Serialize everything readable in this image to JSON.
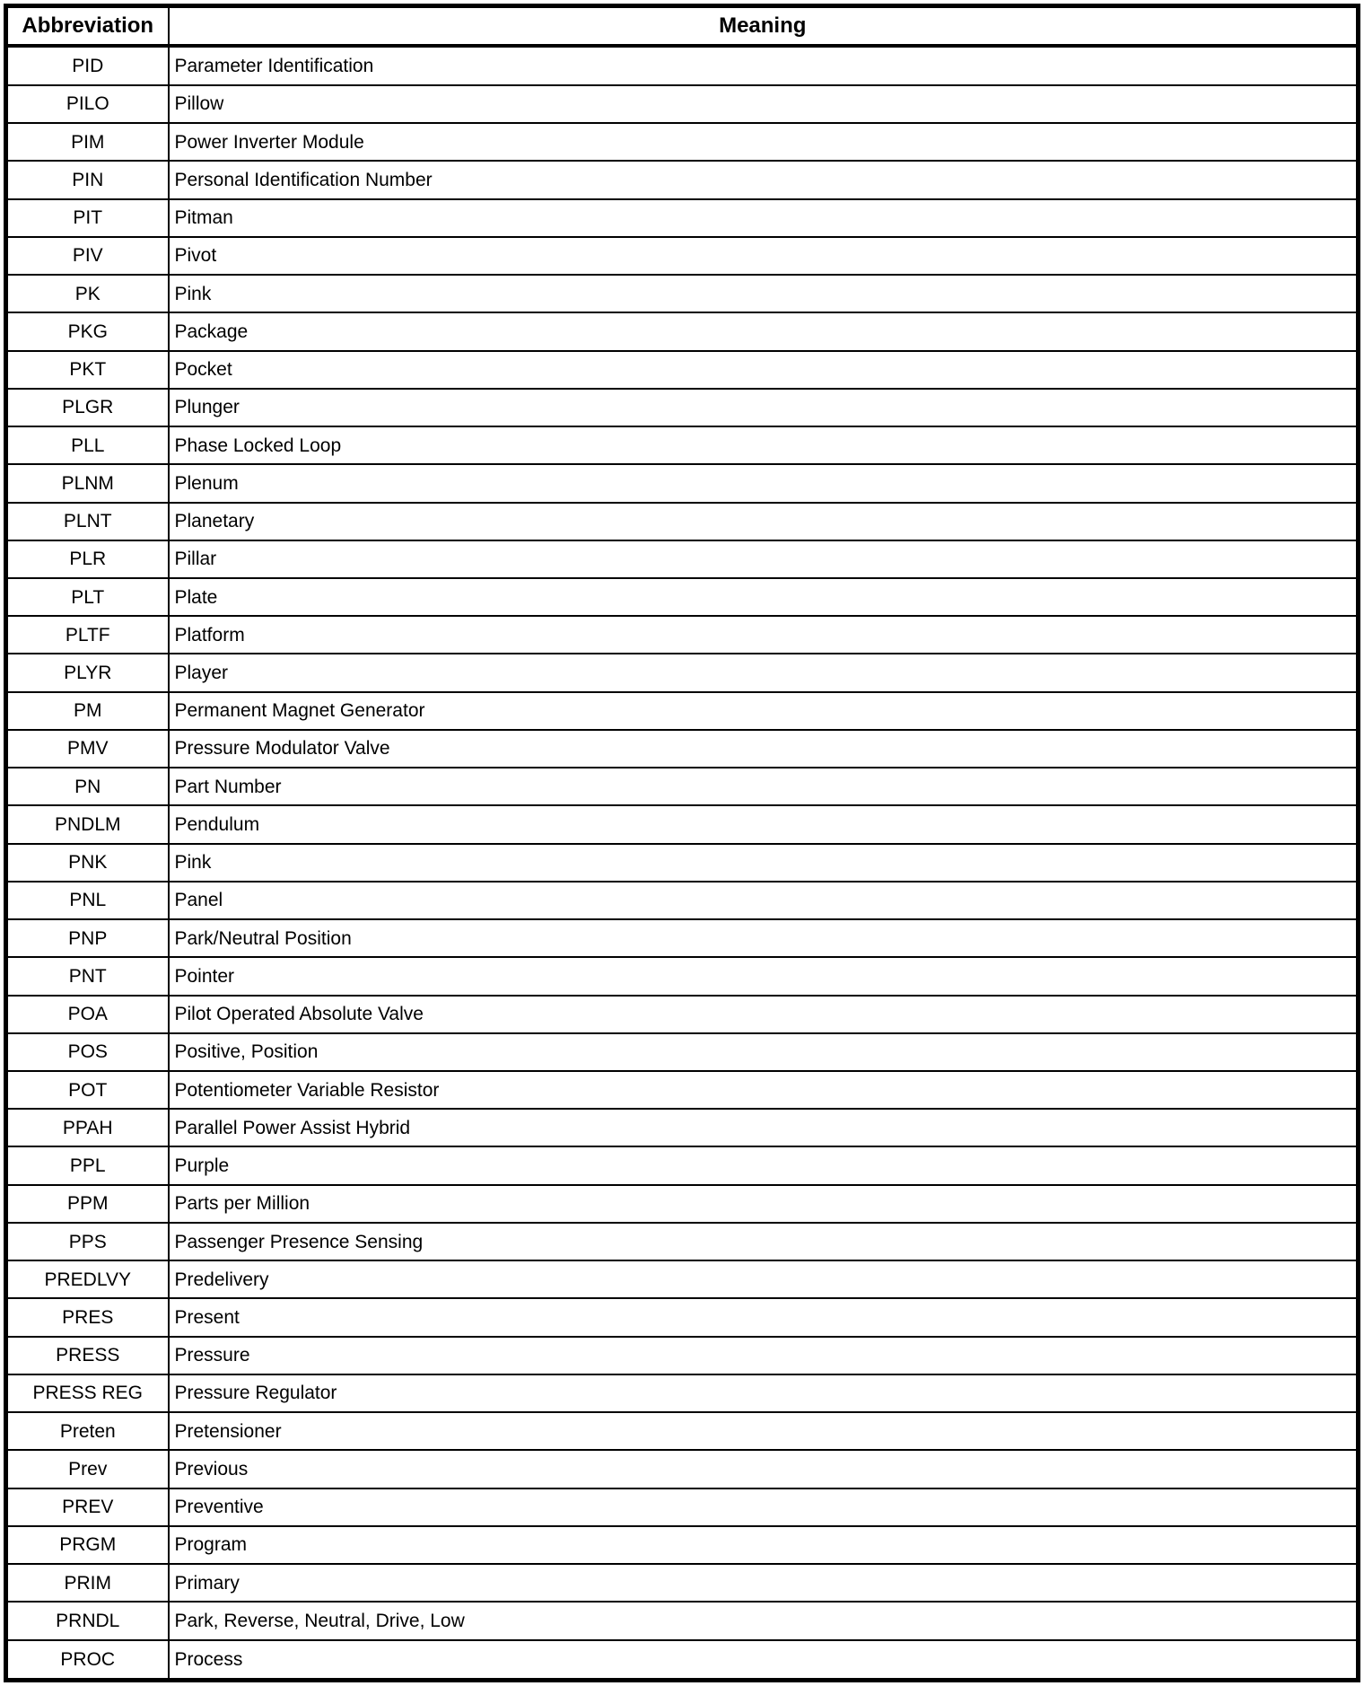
{
  "page": {
    "background_color": "#ffffff",
    "border_color": "#000000",
    "text_color": "#000000"
  },
  "table": {
    "columns": [
      {
        "label": "Abbreviation"
      },
      {
        "label": "Meaning"
      }
    ],
    "rows": [
      {
        "abbr": "PID",
        "meaning": "Parameter Identification"
      },
      {
        "abbr": "PILO",
        "meaning": "Pillow"
      },
      {
        "abbr": "PIM",
        "meaning": "Power Inverter Module"
      },
      {
        "abbr": "PIN",
        "meaning": "Personal Identification Number"
      },
      {
        "abbr": "PIT",
        "meaning": "Pitman"
      },
      {
        "abbr": "PIV",
        "meaning": "Pivot"
      },
      {
        "abbr": "PK",
        "meaning": "Pink"
      },
      {
        "abbr": "PKG",
        "meaning": "Package"
      },
      {
        "abbr": "PKT",
        "meaning": "Pocket"
      },
      {
        "abbr": "PLGR",
        "meaning": "Plunger"
      },
      {
        "abbr": "PLL",
        "meaning": "Phase Locked Loop"
      },
      {
        "abbr": "PLNM",
        "meaning": "Plenum"
      },
      {
        "abbr": "PLNT",
        "meaning": "Planetary"
      },
      {
        "abbr": "PLR",
        "meaning": "Pillar"
      },
      {
        "abbr": "PLT",
        "meaning": "Plate"
      },
      {
        "abbr": "PLTF",
        "meaning": "Platform"
      },
      {
        "abbr": "PLYR",
        "meaning": "Player"
      },
      {
        "abbr": "PM",
        "meaning": "Permanent Magnet Generator"
      },
      {
        "abbr": "PMV",
        "meaning": "Pressure Modulator Valve"
      },
      {
        "abbr": "PN",
        "meaning": "Part Number"
      },
      {
        "abbr": "PNDLM",
        "meaning": "Pendulum"
      },
      {
        "abbr": "PNK",
        "meaning": "Pink"
      },
      {
        "abbr": "PNL",
        "meaning": "Panel"
      },
      {
        "abbr": "PNP",
        "meaning": "Park/Neutral Position"
      },
      {
        "abbr": "PNT",
        "meaning": "Pointer"
      },
      {
        "abbr": "POA",
        "meaning": "Pilot Operated Absolute Valve"
      },
      {
        "abbr": "POS",
        "meaning": "Positive, Position"
      },
      {
        "abbr": "POT",
        "meaning": "Potentiometer Variable Resistor"
      },
      {
        "abbr": "PPAH",
        "meaning": "Parallel Power Assist Hybrid"
      },
      {
        "abbr": "PPL",
        "meaning": "Purple"
      },
      {
        "abbr": "PPM",
        "meaning": "Parts per Million"
      },
      {
        "abbr": "PPS",
        "meaning": "Passenger Presence Sensing"
      },
      {
        "abbr": "PREDLVY",
        "meaning": "Predelivery"
      },
      {
        "abbr": "PRES",
        "meaning": "Present"
      },
      {
        "abbr": "PRESS",
        "meaning": "Pressure"
      },
      {
        "abbr": "PRESS REG",
        "meaning": "Pressure Regulator"
      },
      {
        "abbr": "Preten",
        "meaning": "Pretensioner"
      },
      {
        "abbr": "Prev",
        "meaning": "Previous"
      },
      {
        "abbr": "PREV",
        "meaning": "Preventive"
      },
      {
        "abbr": "PRGM",
        "meaning": "Program"
      },
      {
        "abbr": "PRIM",
        "meaning": "Primary"
      },
      {
        "abbr": "PRNDL",
        "meaning": "Park, Reverse, Neutral, Drive, Low"
      },
      {
        "abbr": "PROC",
        "meaning": "Process"
      }
    ]
  }
}
